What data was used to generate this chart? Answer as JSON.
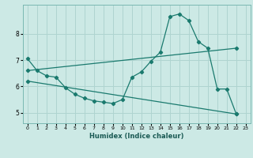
{
  "title": "",
  "xlabel": "Humidex (Indice chaleur)",
  "background_color": "#cce9e5",
  "grid_color": "#afd4d0",
  "line_color": "#1a7a6e",
  "xlim": [
    -0.5,
    23.5
  ],
  "ylim": [
    4.6,
    9.1
  ],
  "yticks": [
    5,
    6,
    7,
    8
  ],
  "xticks": [
    0,
    1,
    2,
    3,
    4,
    5,
    6,
    7,
    8,
    9,
    10,
    11,
    12,
    13,
    14,
    15,
    16,
    17,
    18,
    19,
    20,
    21,
    22,
    23
  ],
  "series": [
    {
      "x": [
        0,
        1,
        2,
        3,
        4,
        5,
        6,
        7,
        8,
        9,
        10,
        11,
        12,
        13,
        14,
        15,
        16,
        17,
        18,
        19,
        20,
        21,
        22
      ],
      "y": [
        7.05,
        6.6,
        6.4,
        6.35,
        5.95,
        5.7,
        5.55,
        5.45,
        5.4,
        5.35,
        5.5,
        6.35,
        6.55,
        6.95,
        7.3,
        8.65,
        8.75,
        8.5,
        7.7,
        7.45,
        5.9,
        5.9,
        4.95
      ]
    },
    {
      "x": [
        0,
        22
      ],
      "y": [
        6.6,
        7.45
      ]
    },
    {
      "x": [
        0,
        22
      ],
      "y": [
        6.2,
        4.95
      ]
    }
  ]
}
